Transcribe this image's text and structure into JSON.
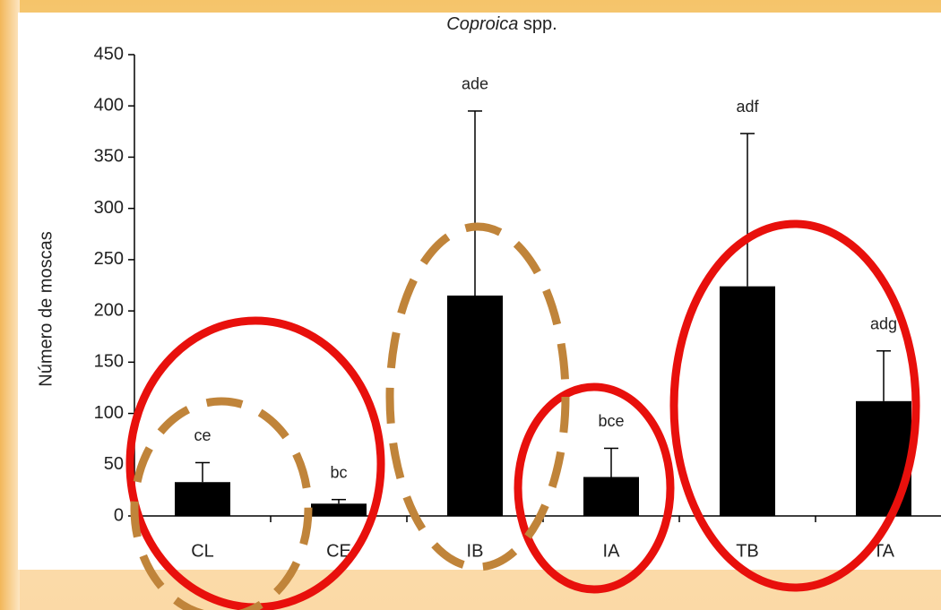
{
  "chart_data": {
    "type": "bar",
    "title": [
      "Coproica",
      "spp."
    ],
    "ylabel": "Número de moscas",
    "categories": [
      "CL",
      "CE",
      "IB",
      "IA",
      "TB",
      "TA"
    ],
    "series": [
      {
        "name": "Coproica spp.",
        "color": "#000000",
        "values": [
          33,
          12,
          215,
          38,
          224,
          112
        ],
        "errors": [
          19,
          4,
          180,
          28,
          149,
          49
        ],
        "annotations": [
          "ce",
          "bc",
          "ade",
          "bce",
          "adf",
          "adg"
        ]
      }
    ],
    "ylim": [
      0,
      450
    ],
    "yticks": [
      0,
      50,
      100,
      150,
      200,
      250,
      300,
      350,
      400,
      450
    ],
    "grid": false
  }
}
